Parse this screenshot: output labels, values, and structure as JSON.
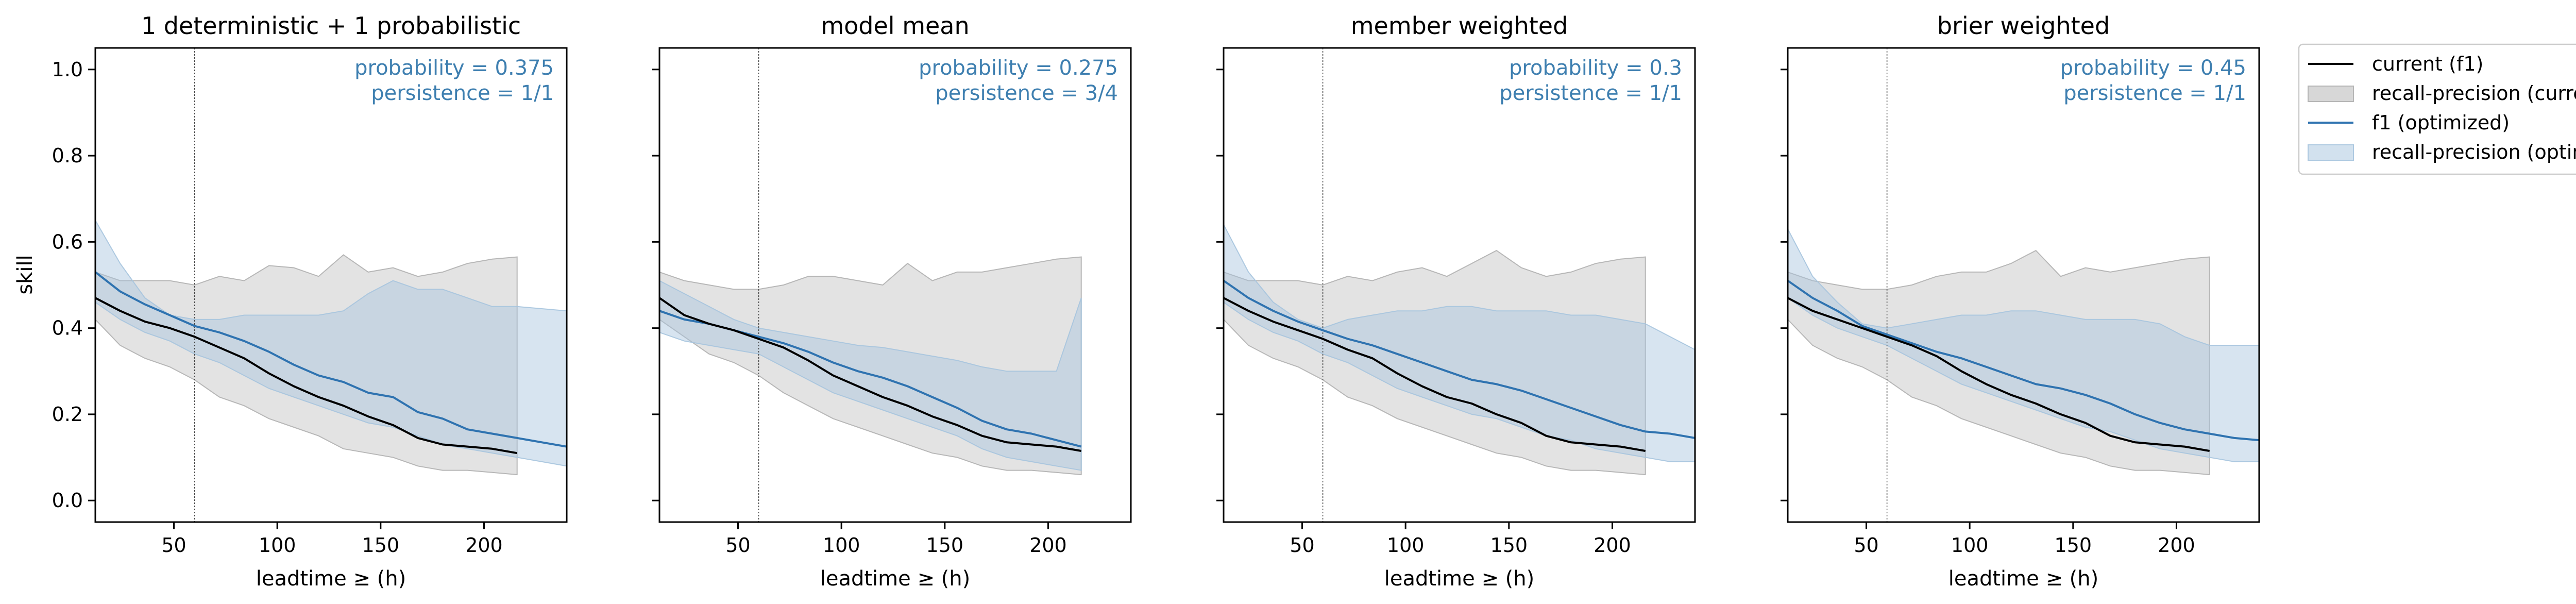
{
  "figure": {
    "ylabel": "skill",
    "legend": {
      "placement": "outside-right",
      "items": [
        {
          "label": "current (f1)",
          "kind": "line",
          "color": "#000000"
        },
        {
          "label": "recall-precision (current)",
          "kind": "band",
          "color": "#b0b0b0"
        },
        {
          "label": "f1 (optimized)",
          "kind": "line",
          "color": "#2f73b0"
        },
        {
          "label": "recall-precision (optimized)",
          "kind": "band",
          "color": "#a6c4de"
        }
      ]
    }
  },
  "chart_data": [
    {
      "type": "line",
      "title": "1 deterministic + 1 probabilistic",
      "xlabel": "leadtime ≥ (h)",
      "ylabel": "skill",
      "xlim": [
        12,
        240
      ],
      "ylim": [
        -0.05,
        1.05
      ],
      "xticks": [
        50,
        100,
        150,
        200
      ],
      "yticks": [
        0.0,
        0.2,
        0.4,
        0.6,
        0.8,
        1.0
      ],
      "vline_x": 60,
      "annotations": [
        "probability = 0.375",
        "persistence = 1/1"
      ],
      "current": {
        "x": [
          12,
          24,
          36,
          48,
          60,
          72,
          84,
          96,
          108,
          120,
          132,
          144,
          156,
          168,
          180,
          192,
          204,
          216
        ],
        "f1": [
          0.47,
          0.44,
          0.415,
          0.4,
          0.38,
          0.355,
          0.33,
          0.295,
          0.265,
          0.24,
          0.22,
          0.195,
          0.175,
          0.145,
          0.13,
          0.125,
          0.12,
          0.11
        ],
        "upper": [
          0.53,
          0.51,
          0.51,
          0.51,
          0.5,
          0.52,
          0.51,
          0.545,
          0.54,
          0.52,
          0.57,
          0.53,
          0.54,
          0.52,
          0.53,
          0.55,
          0.56,
          0.565
        ],
        "lower": [
          0.42,
          0.36,
          0.33,
          0.31,
          0.28,
          0.24,
          0.22,
          0.19,
          0.17,
          0.15,
          0.12,
          0.11,
          0.1,
          0.08,
          0.07,
          0.07,
          0.065,
          0.06
        ]
      },
      "optimized": {
        "x": [
          12,
          24,
          36,
          48,
          60,
          72,
          84,
          96,
          108,
          120,
          132,
          144,
          156,
          168,
          180,
          192,
          204,
          216,
          228,
          240
        ],
        "f1": [
          0.53,
          0.485,
          0.455,
          0.43,
          0.405,
          0.39,
          0.37,
          0.345,
          0.315,
          0.29,
          0.275,
          0.25,
          0.24,
          0.205,
          0.19,
          0.165,
          0.155,
          0.145,
          0.135,
          0.125
        ],
        "upper": [
          0.65,
          0.55,
          0.47,
          0.43,
          0.42,
          0.42,
          0.43,
          0.43,
          0.43,
          0.43,
          0.44,
          0.48,
          0.51,
          0.49,
          0.49,
          0.47,
          0.45,
          0.45,
          0.445,
          0.44
        ],
        "lower": [
          0.46,
          0.42,
          0.39,
          0.37,
          0.34,
          0.32,
          0.29,
          0.26,
          0.24,
          0.22,
          0.2,
          0.18,
          0.17,
          0.15,
          0.13,
          0.12,
          0.11,
          0.1,
          0.09,
          0.08
        ]
      }
    },
    {
      "type": "line",
      "title": "model mean",
      "xlabel": "leadtime ≥ (h)",
      "ylabel": "",
      "xlim": [
        12,
        240
      ],
      "ylim": [
        -0.05,
        1.05
      ],
      "xticks": [
        50,
        100,
        150,
        200
      ],
      "yticks": [
        0.0,
        0.2,
        0.4,
        0.6,
        0.8,
        1.0
      ],
      "vline_x": 60,
      "annotations": [
        "probability = 0.275",
        "persistence = 3/4"
      ],
      "current": {
        "x": [
          12,
          24,
          36,
          48,
          60,
          72,
          84,
          96,
          108,
          120,
          132,
          144,
          156,
          168,
          180,
          192,
          204,
          216
        ],
        "f1": [
          0.47,
          0.43,
          0.41,
          0.395,
          0.375,
          0.355,
          0.325,
          0.29,
          0.265,
          0.24,
          0.22,
          0.195,
          0.175,
          0.15,
          0.135,
          0.13,
          0.125,
          0.115
        ],
        "upper": [
          0.53,
          0.51,
          0.5,
          0.49,
          0.49,
          0.5,
          0.52,
          0.52,
          0.51,
          0.5,
          0.55,
          0.51,
          0.53,
          0.53,
          0.54,
          0.55,
          0.56,
          0.565
        ],
        "lower": [
          0.42,
          0.38,
          0.34,
          0.32,
          0.29,
          0.25,
          0.22,
          0.19,
          0.17,
          0.15,
          0.13,
          0.11,
          0.1,
          0.08,
          0.07,
          0.07,
          0.065,
          0.06
        ]
      },
      "optimized": {
        "x": [
          12,
          24,
          36,
          48,
          60,
          72,
          84,
          96,
          108,
          120,
          132,
          144,
          156,
          168,
          180,
          192,
          204,
          216
        ],
        "f1": [
          0.44,
          0.42,
          0.41,
          0.395,
          0.38,
          0.365,
          0.345,
          0.32,
          0.3,
          0.285,
          0.265,
          0.24,
          0.215,
          0.185,
          0.165,
          0.155,
          0.14,
          0.125
        ],
        "upper": [
          0.51,
          0.48,
          0.45,
          0.42,
          0.4,
          0.39,
          0.38,
          0.37,
          0.36,
          0.355,
          0.345,
          0.335,
          0.325,
          0.31,
          0.3,
          0.3,
          0.3,
          0.47
        ],
        "lower": [
          0.39,
          0.37,
          0.36,
          0.35,
          0.34,
          0.31,
          0.28,
          0.25,
          0.23,
          0.21,
          0.19,
          0.17,
          0.15,
          0.12,
          0.1,
          0.09,
          0.08,
          0.07
        ]
      }
    },
    {
      "type": "line",
      "title": "member weighted",
      "xlabel": "leadtime ≥ (h)",
      "ylabel": "",
      "xlim": [
        12,
        240
      ],
      "ylim": [
        -0.05,
        1.05
      ],
      "xticks": [
        50,
        100,
        150,
        200
      ],
      "yticks": [
        0.0,
        0.2,
        0.4,
        0.6,
        0.8,
        1.0
      ],
      "vline_x": 60,
      "annotations": [
        "probability = 0.3",
        "persistence = 1/1"
      ],
      "current": {
        "x": [
          12,
          24,
          36,
          48,
          60,
          72,
          84,
          96,
          108,
          120,
          132,
          144,
          156,
          168,
          180,
          192,
          204,
          216
        ],
        "f1": [
          0.47,
          0.44,
          0.415,
          0.395,
          0.375,
          0.35,
          0.33,
          0.295,
          0.265,
          0.24,
          0.225,
          0.2,
          0.18,
          0.15,
          0.135,
          0.13,
          0.125,
          0.115
        ],
        "upper": [
          0.53,
          0.51,
          0.51,
          0.51,
          0.5,
          0.52,
          0.51,
          0.53,
          0.54,
          0.52,
          0.55,
          0.58,
          0.54,
          0.52,
          0.53,
          0.55,
          0.56,
          0.565
        ],
        "lower": [
          0.42,
          0.36,
          0.33,
          0.31,
          0.28,
          0.24,
          0.22,
          0.19,
          0.17,
          0.15,
          0.13,
          0.11,
          0.1,
          0.08,
          0.07,
          0.07,
          0.065,
          0.06
        ]
      },
      "optimized": {
        "x": [
          12,
          24,
          36,
          48,
          60,
          72,
          84,
          96,
          108,
          120,
          132,
          144,
          156,
          168,
          180,
          192,
          204,
          216,
          228,
          240
        ],
        "f1": [
          0.51,
          0.47,
          0.44,
          0.415,
          0.395,
          0.375,
          0.36,
          0.34,
          0.32,
          0.3,
          0.28,
          0.27,
          0.255,
          0.235,
          0.215,
          0.195,
          0.175,
          0.16,
          0.155,
          0.145
        ],
        "upper": [
          0.64,
          0.53,
          0.46,
          0.42,
          0.4,
          0.42,
          0.43,
          0.44,
          0.44,
          0.45,
          0.45,
          0.44,
          0.44,
          0.44,
          0.43,
          0.43,
          0.42,
          0.41,
          0.38,
          0.35
        ],
        "lower": [
          0.46,
          0.42,
          0.39,
          0.37,
          0.34,
          0.32,
          0.29,
          0.26,
          0.24,
          0.22,
          0.2,
          0.19,
          0.17,
          0.15,
          0.14,
          0.12,
          0.11,
          0.1,
          0.09,
          0.09
        ]
      }
    },
    {
      "type": "line",
      "title": "brier weighted",
      "xlabel": "leadtime ≥ (h)",
      "ylabel": "",
      "xlim": [
        12,
        240
      ],
      "ylim": [
        -0.05,
        1.05
      ],
      "xticks": [
        50,
        100,
        150,
        200
      ],
      "yticks": [
        0.0,
        0.2,
        0.4,
        0.6,
        0.8,
        1.0
      ],
      "vline_x": 60,
      "annotations": [
        "probability = 0.45",
        "persistence = 1/1"
      ],
      "current": {
        "x": [
          12,
          24,
          36,
          48,
          60,
          72,
          84,
          96,
          108,
          120,
          132,
          144,
          156,
          168,
          180,
          192,
          204,
          216
        ],
        "f1": [
          0.47,
          0.44,
          0.42,
          0.4,
          0.38,
          0.36,
          0.335,
          0.3,
          0.27,
          0.245,
          0.225,
          0.2,
          0.18,
          0.15,
          0.135,
          0.13,
          0.125,
          0.115
        ],
        "upper": [
          0.53,
          0.51,
          0.5,
          0.49,
          0.49,
          0.5,
          0.52,
          0.53,
          0.53,
          0.55,
          0.58,
          0.52,
          0.54,
          0.53,
          0.54,
          0.55,
          0.56,
          0.565
        ],
        "lower": [
          0.42,
          0.36,
          0.33,
          0.31,
          0.28,
          0.24,
          0.22,
          0.19,
          0.17,
          0.15,
          0.13,
          0.11,
          0.1,
          0.08,
          0.07,
          0.07,
          0.065,
          0.06
        ]
      },
      "optimized": {
        "x": [
          12,
          24,
          36,
          48,
          60,
          72,
          84,
          96,
          108,
          120,
          132,
          144,
          156,
          168,
          180,
          192,
          204,
          216,
          228,
          240
        ],
        "f1": [
          0.51,
          0.47,
          0.44,
          0.405,
          0.385,
          0.365,
          0.345,
          0.33,
          0.31,
          0.29,
          0.27,
          0.26,
          0.245,
          0.225,
          0.2,
          0.18,
          0.165,
          0.155,
          0.145,
          0.14
        ],
        "upper": [
          0.63,
          0.52,
          0.46,
          0.41,
          0.4,
          0.41,
          0.42,
          0.43,
          0.43,
          0.44,
          0.44,
          0.43,
          0.42,
          0.42,
          0.42,
          0.41,
          0.38,
          0.36,
          0.36,
          0.36
        ],
        "lower": [
          0.47,
          0.43,
          0.4,
          0.38,
          0.36,
          0.33,
          0.3,
          0.27,
          0.25,
          0.23,
          0.21,
          0.19,
          0.17,
          0.16,
          0.14,
          0.12,
          0.11,
          0.1,
          0.09,
          0.09
        ]
      }
    }
  ]
}
